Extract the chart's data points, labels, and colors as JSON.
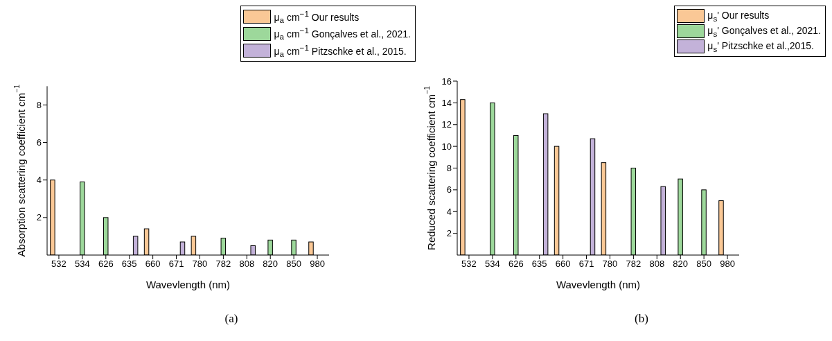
{
  "chart_data": [
    {
      "type": "bar",
      "xlabel": "Wavevlength (nm)",
      "ylabel": "Absorption scattering coefficient cm$^{−1}$",
      "categories": [
        "532",
        "534",
        "626",
        "635",
        "660",
        "671",
        "780",
        "782",
        "808",
        "820",
        "850",
        "980"
      ],
      "series": [
        {
          "name": "μ$_{a}$ cm$^{−1}$ Our results",
          "color": "#fac896",
          "values": [
            4.0,
            null,
            null,
            null,
            1.4,
            null,
            1.0,
            null,
            null,
            null,
            null,
            0.7
          ]
        },
        {
          "name": "μ$_{a}$ cm$^{−1}$ Gonçalves et al., 2021.",
          "color": "#9dd89b",
          "values": [
            null,
            3.9,
            2.0,
            null,
            null,
            null,
            null,
            0.9,
            null,
            0.8,
            0.8,
            null
          ]
        },
        {
          "name": "μ$_{a}$ cm$^{−1}$ Pitzschke et al., 2015.",
          "color": "#c3b2d9",
          "values": [
            null,
            null,
            null,
            1.0,
            null,
            0.7,
            null,
            null,
            0.5,
            null,
            null,
            null
          ]
        }
      ],
      "ylim": [
        0,
        9
      ],
      "yticks": [
        2,
        4,
        6,
        8
      ],
      "grid": false,
      "legend": "top right",
      "annotations": [
        "(a)"
      ]
    },
    {
      "type": "bar",
      "xlabel": "Wavevlength (nm)",
      "ylabel": "Reduced scattering coefficient cm$^{−1}$",
      "categories": [
        "532",
        "534",
        "626",
        "635",
        "660",
        "671",
        "780",
        "782",
        "808",
        "820",
        "850",
        "980"
      ],
      "series": [
        {
          "name": "μ$_{s}$' Our results",
          "color": "#fac896",
          "values": [
            14.3,
            null,
            null,
            null,
            10,
            null,
            8.5,
            null,
            null,
            null,
            null,
            5
          ]
        },
        {
          "name": "μ$_{s}$' Gonçalves et al., 2021.",
          "color": "#9dd89b",
          "values": [
            null,
            14,
            11,
            null,
            null,
            null,
            null,
            8,
            null,
            7,
            6,
            null
          ]
        },
        {
          "name": "μ$_{s}$' Pitzschke et al.,2015.",
          "color": "#c3b2d9",
          "values": [
            null,
            null,
            null,
            13,
            null,
            10.7,
            null,
            null,
            6.3,
            null,
            null,
            null
          ]
        }
      ],
      "ylim": [
        0,
        16
      ],
      "yticks": [
        2,
        4,
        6,
        8,
        10,
        12,
        14,
        16
      ],
      "grid": false,
      "legend": "top right",
      "annotations": [
        "(b)"
      ]
    }
  ]
}
